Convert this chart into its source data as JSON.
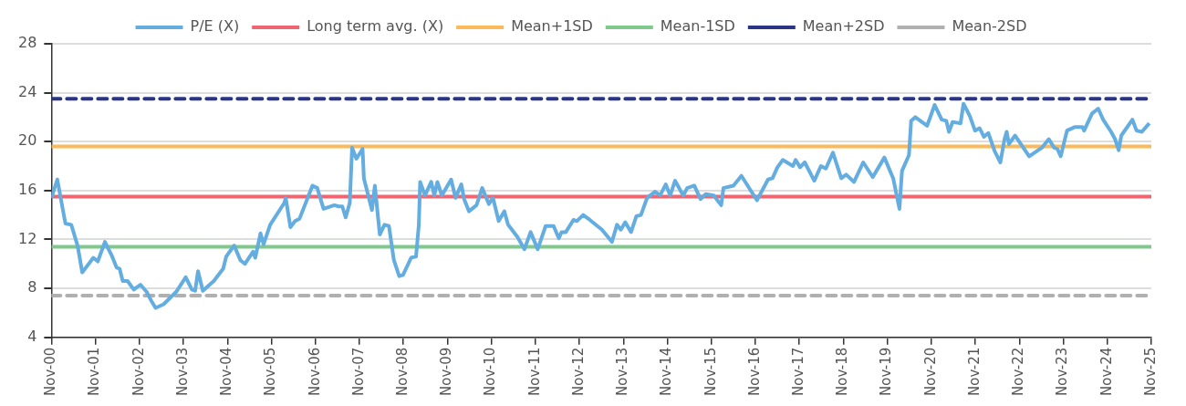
{
  "chart_data": {
    "type": "line",
    "xlim": [
      "2000-11",
      "2025-11"
    ],
    "xticks": [
      {
        "value": "2000-11",
        "label": "Nov-00"
      },
      {
        "value": "2001-11",
        "label": "Nov-01"
      },
      {
        "value": "2002-11",
        "label": "Nov-02"
      },
      {
        "value": "2003-11",
        "label": "Nov-03"
      },
      {
        "value": "2004-11",
        "label": "Nov-04"
      },
      {
        "value": "2005-11",
        "label": "Nov-05"
      },
      {
        "value": "2006-11",
        "label": "Nov-06"
      },
      {
        "value": "2007-11",
        "label": "Nov-07"
      },
      {
        "value": "2008-11",
        "label": "Nov-08"
      },
      {
        "value": "2009-11",
        "label": "Nov-09"
      },
      {
        "value": "2010-11",
        "label": "Nov-10"
      },
      {
        "value": "2011-11",
        "label": "Nov-11"
      },
      {
        "value": "2012-11",
        "label": "Nov-12"
      },
      {
        "value": "2013-11",
        "label": "Nov-13"
      },
      {
        "value": "2014-11",
        "label": "Nov-14"
      },
      {
        "value": "2015-11",
        "label": "Nov-15"
      },
      {
        "value": "2016-11",
        "label": "Nov-16"
      },
      {
        "value": "2017-11",
        "label": "Nov-17"
      },
      {
        "value": "2018-11",
        "label": "Nov-18"
      },
      {
        "value": "2019-11",
        "label": "Nov-19"
      },
      {
        "value": "2020-11",
        "label": "Nov-20"
      },
      {
        "value": "2021-11",
        "label": "Nov-21"
      },
      {
        "value": "2022-11",
        "label": "Nov-22"
      },
      {
        "value": "2023-11",
        "label": "Nov-23"
      },
      {
        "value": "2024-11",
        "label": "Nov-24"
      },
      {
        "value": "2025-11",
        "label": "Nov-25"
      }
    ],
    "ylim": [
      4,
      28
    ],
    "yticks": [
      4,
      8,
      12,
      16,
      20,
      24,
      28
    ],
    "grid": "y",
    "legend": "top",
    "marker": "none",
    "line_style": "solid",
    "series": [
      {
        "name": "P/E (X)",
        "color": "#63ade0",
        "x": [
          "2000-11-01",
          "2000-12-20",
          "2001-02-25",
          "2001-04-15",
          "2001-06-06",
          "2001-07-15",
          "2001-10-15",
          "2001-11-21",
          "2002-01-19",
          "2002-03-16",
          "2002-04-26",
          "2002-05-21",
          "2002-06-16",
          "2002-07-26",
          "2002-09-16",
          "2002-11-10",
          "2003-01-01",
          "2003-02-07",
          "2003-03-16",
          "2003-05-21",
          "2003-09-02",
          "2003-11-21",
          "2004-01-11",
          "2004-02-07",
          "2004-03-02",
          "2004-04-11",
          "2004-07-11",
          "2004-09-27",
          "2004-10-22",
          "2004-12-27",
          "2005-02-17",
          "2005-03-27",
          "2005-06-02",
          "2005-06-20",
          "2005-08-03",
          "2005-08-28",
          "2005-10-22",
          "2006-02-17",
          "2006-02-28",
          "2006-04-08",
          "2006-05-17",
          "2006-06-23",
          "2006-10-08",
          "2006-11-17",
          "2007-01-08",
          "2007-04-08",
          "2007-05-14",
          "2007-06-13",
          "2007-07-11",
          "2007-08-14",
          "2007-09-02",
          "2007-10-08",
          "2007-11-28",
          "2007-12-09",
          "2008-02-14",
          "2008-03-09",
          "2008-04-19",
          "2008-05-28",
          "2008-07-04",
          "2008-08-14",
          "2008-09-27",
          "2008-10-29",
          "2009-01-04",
          "2009-02-14",
          "2009-03-09",
          "2009-03-20",
          "2009-04-29",
          "2009-06-20",
          "2009-07-15",
          "2009-08-10",
          "2009-09-16",
          "2009-12-02",
          "2010-01-08",
          "2010-02-25",
          "2010-03-20",
          "2010-04-29",
          "2010-07-01",
          "2010-08-17",
          "2010-10-11",
          "2010-11-14",
          "2011-01-01",
          "2011-02-17",
          "2011-03-20",
          "2011-06-06",
          "2011-08-03",
          "2011-09-23",
          "2011-11-21",
          "2012-01-26",
          "2012-04-01",
          "2012-05-14",
          "2012-06-06",
          "2012-07-11",
          "2012-09-13",
          "2012-10-11",
          "2012-12-02",
          "2013-01-26",
          "2013-05-07",
          "2013-07-29",
          "2013-09-09",
          "2013-10-11",
          "2013-11-17",
          "2014-01-04",
          "2014-02-17",
          "2014-03-27",
          "2014-05-17",
          "2014-07-22",
          "2014-09-02",
          "2014-10-19",
          "2014-11-25",
          "2015-01-04",
          "2015-03-13",
          "2015-04-15",
          "2015-06-13",
          "2015-08-03",
          "2015-09-16",
          "2015-11-21",
          "2016-01-22",
          "2016-02-10",
          "2016-05-03",
          "2016-07-08",
          "2016-11-14",
          "2017-02-14",
          "2017-03-23",
          "2017-05-03",
          "2017-06-16",
          "2017-09-09",
          "2017-10-01",
          "2017-11-07",
          "2017-12-16",
          "2018-03-05",
          "2018-04-29",
          "2018-06-09",
          "2018-08-07",
          "2018-10-15",
          "2018-11-25",
          "2019-01-29",
          "2019-04-15",
          "2019-07-04",
          "2019-10-08",
          "2019-12-20",
          "2020-02-10",
          "2020-03-02",
          "2020-04-29",
          "2020-05-17",
          "2020-06-20",
          "2020-09-27",
          "2020-11-28",
          "2021-01-26",
          "2021-03-05",
          "2021-03-27",
          "2021-04-26",
          "2021-07-01",
          "2021-07-26",
          "2021-09-16",
          "2021-10-29",
          "2021-12-06",
          "2022-01-11",
          "2022-02-17",
          "2022-04-11",
          "2022-05-28",
          "2022-07-01",
          "2022-07-19",
          "2022-08-07",
          "2022-09-27",
          "2023-01-22",
          "2023-05-07",
          "2023-07-04",
          "2023-08-17",
          "2023-09-13",
          "2023-10-11",
          "2023-12-02",
          "2024-02-07",
          "2024-04-08",
          "2024-04-22",
          "2024-06-27",
          "2024-08-17",
          "2024-09-27",
          "2024-12-02",
          "2025-01-04",
          "2025-02-03",
          "2025-02-25",
          "2025-05-28",
          "2025-07-01",
          "2025-08-14",
          "2025-10-15"
        ],
        "values": [
          15.4,
          16.9,
          13.3,
          13.2,
          11.5,
          9.3,
          10.5,
          10.2,
          11.8,
          10.7,
          9.7,
          9.6,
          8.6,
          8.6,
          7.9,
          8.3,
          7.7,
          7.0,
          6.4,
          6.7,
          7.7,
          8.9,
          7.9,
          7.8,
          9.4,
          7.8,
          8.6,
          9.6,
          10.6,
          11.5,
          10.3,
          10.0,
          11.0,
          10.5,
          12.5,
          11.6,
          13.2,
          15.0,
          15.4,
          13.0,
          13.5,
          13.7,
          16.4,
          16.2,
          14.5,
          14.8,
          14.7,
          14.7,
          13.8,
          15.0,
          19.5,
          18.6,
          19.4,
          17.0,
          14.4,
          16.4,
          12.4,
          13.2,
          13.1,
          10.3,
          9.0,
          9.1,
          10.5,
          10.6,
          13.2,
          16.7,
          15.6,
          16.7,
          15.6,
          16.7,
          15.6,
          16.9,
          15.4,
          16.5,
          15.3,
          14.3,
          14.8,
          16.2,
          14.9,
          15.4,
          13.5,
          14.3,
          13.2,
          12.2,
          11.2,
          12.6,
          11.2,
          13.1,
          13.1,
          12.1,
          12.6,
          12.6,
          13.6,
          13.5,
          14.0,
          13.6,
          12.8,
          11.8,
          13.2,
          12.8,
          13.4,
          12.6,
          13.9,
          14.0,
          15.4,
          15.9,
          15.6,
          16.5,
          15.6,
          16.8,
          15.6,
          16.2,
          16.4,
          15.3,
          15.7,
          15.6,
          14.8,
          16.2,
          16.4,
          17.2,
          15.2,
          16.9,
          17.0,
          17.9,
          18.5,
          18.0,
          18.5,
          17.9,
          18.3,
          16.8,
          18.0,
          17.8,
          19.1,
          17.0,
          17.3,
          16.7,
          18.3,
          17.1,
          18.7,
          17.0,
          14.5,
          17.6,
          18.9,
          21.7,
          22.0,
          21.3,
          23.0,
          21.8,
          21.7,
          20.8,
          21.6,
          21.5,
          23.1,
          22.1,
          20.9,
          21.1,
          20.4,
          20.7,
          19.2,
          18.3,
          20.2,
          20.8,
          19.8,
          20.5,
          18.8,
          19.5,
          20.2,
          19.5,
          19.4,
          18.8,
          20.9,
          21.2,
          21.2,
          20.9,
          22.3,
          22.7,
          21.8,
          20.8,
          20.2,
          19.3,
          20.5,
          21.8,
          20.9,
          20.8,
          21.5
        ]
      },
      {
        "name": "Long term avg. (X)",
        "color": "#ef6670",
        "x": [
          "2000-11",
          "2025-11"
        ],
        "values": [
          15.5,
          15.5
        ]
      },
      {
        "name": "Mean+1SD",
        "color": "#fbb95a",
        "x": [
          "2000-11",
          "2025-11"
        ],
        "values": [
          19.6,
          19.6
        ]
      },
      {
        "name": "Mean-1SD",
        "color": "#7fc98b",
        "x": [
          "2000-11",
          "2025-11"
        ],
        "values": [
          11.4,
          11.4
        ]
      },
      {
        "name": "Mean+2SD",
        "color": "#2b3585",
        "x": [
          "2000-11",
          "2025-11"
        ],
        "values": [
          23.5,
          23.5
        ],
        "line_style": "dashed"
      },
      {
        "name": "Mean-2SD",
        "color": "#b0b0b0",
        "x": [
          "2000-11",
          "2025-11"
        ],
        "values": [
          7.4,
          7.4
        ],
        "line_style": "dashed"
      }
    ]
  }
}
